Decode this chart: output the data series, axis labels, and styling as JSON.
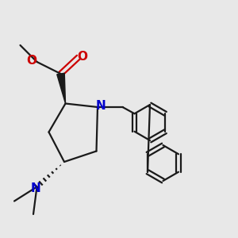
{
  "bg_color": "#e8e8e8",
  "bond_color": "#1a1a1a",
  "N_color": "#0000cc",
  "O_color": "#cc0000",
  "font_size": 10,
  "lw": 1.6,
  "fig_size": [
    3.0,
    3.0
  ],
  "dpi": 100,
  "xlim": [
    0,
    10
  ],
  "ylim": [
    0,
    10
  ]
}
